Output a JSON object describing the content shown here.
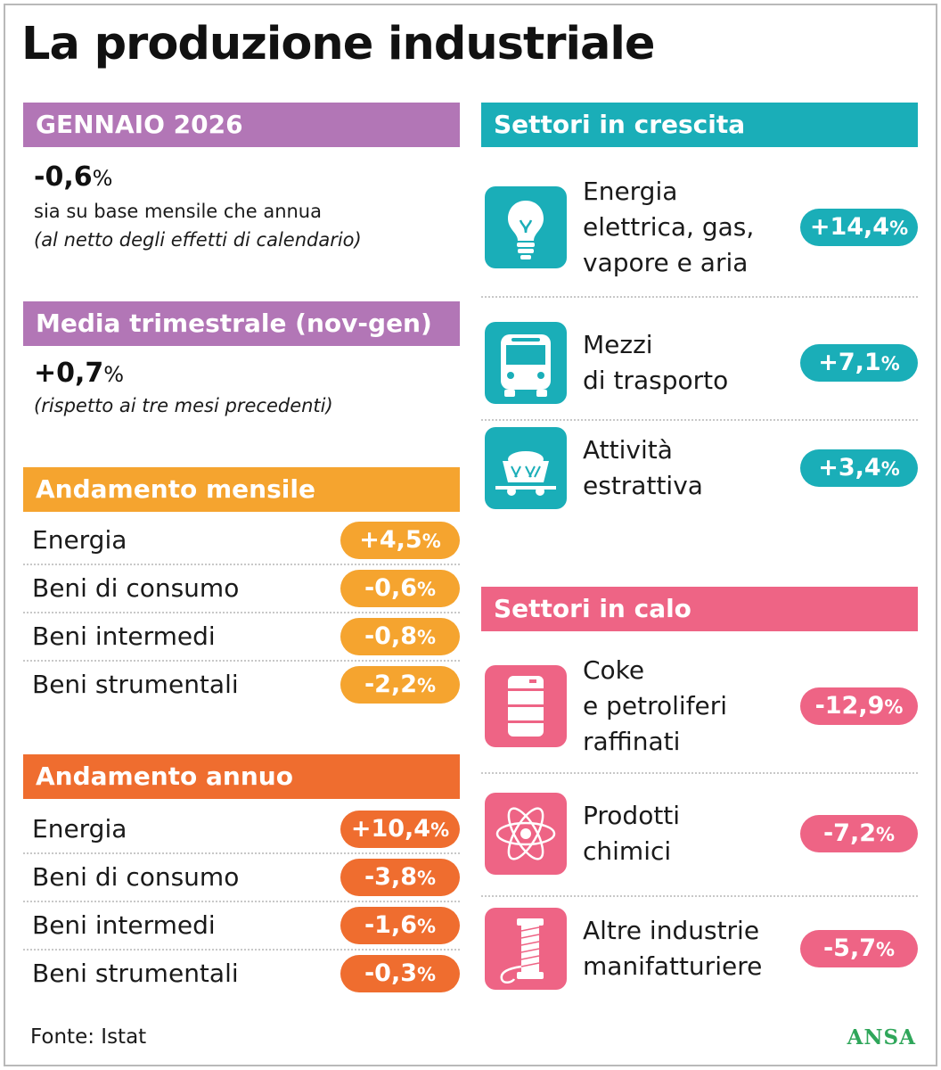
{
  "title": "La produzione industriale",
  "gennaio": {
    "header": "GENNAIO 2026",
    "value": "-0,6",
    "unit": "%",
    "line1": "sia su base mensile che annua",
    "line2": "(al netto degli effetti di calendario)"
  },
  "media": {
    "header": "Media trimestrale (nov-gen)",
    "value": "+0,7",
    "unit": "%",
    "line1": "(rispetto ai tre mesi precedenti)"
  },
  "mensile": {
    "header": "Andamento mensile",
    "rows": [
      {
        "label": "Energia",
        "value": "+4,5",
        "unit": "%"
      },
      {
        "label": "Beni di consumo",
        "value": "-0,6",
        "unit": "%"
      },
      {
        "label": "Beni intermedi",
        "value": "-0,8",
        "unit": "%"
      },
      {
        "label": "Beni strumentali",
        "value": "-2,2",
        "unit": "%"
      }
    ]
  },
  "annuo": {
    "header": "Andamento annuo",
    "rows": [
      {
        "label": "Energia",
        "value": "+10,4",
        "unit": "%"
      },
      {
        "label": "Beni di consumo",
        "value": "-3,8",
        "unit": "%"
      },
      {
        "label": "Beni intermedi",
        "value": "-1,6",
        "unit": "%"
      },
      {
        "label": "Beni strumentali",
        "value": "-0,3",
        "unit": "%"
      }
    ]
  },
  "crescita": {
    "header": "Settori in crescita",
    "items": [
      {
        "icon": "lightbulb-icon",
        "lines": [
          "Energia",
          "elettrica, gas,",
          "vapore e aria"
        ],
        "value": "+14,4",
        "unit": "%"
      },
      {
        "icon": "bus-icon",
        "lines": [
          "Mezzi",
          "di trasporto"
        ],
        "value": "+7,1",
        "unit": "%"
      },
      {
        "icon": "mine-cart-icon",
        "lines": [
          "Attività",
          "estrattiva"
        ],
        "value": "+3,4",
        "unit": "%"
      }
    ]
  },
  "calo": {
    "header": "Settori in calo",
    "items": [
      {
        "icon": "oil-barrel-icon",
        "lines": [
          "Coke",
          "e petroliferi",
          "raffinati"
        ],
        "value": "-12,9",
        "unit": "%"
      },
      {
        "icon": "atom-icon",
        "lines": [
          "Prodotti",
          "chimici"
        ],
        "value": "-7,2",
        "unit": "%"
      },
      {
        "icon": "thread-spool-icon",
        "lines": [
          "Altre industrie",
          "manifatturiere"
        ],
        "value": "-5,7",
        "unit": "%"
      }
    ]
  },
  "source": "Fonte: Istat",
  "logo": "ANSA",
  "colors": {
    "purple": "#b276b6",
    "orange_light": "#f5a42f",
    "orange_dark": "#ef6d2f",
    "teal": "#1aaeb8",
    "pink": "#ee6485",
    "logo_green": "#2fa65a"
  }
}
